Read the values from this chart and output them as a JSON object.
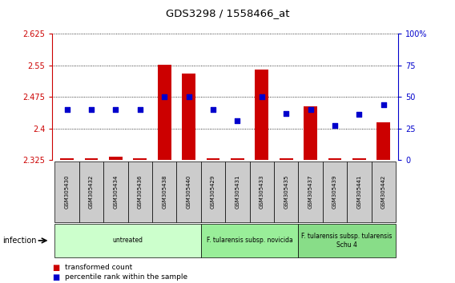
{
  "title": "GDS3298 / 1558466_at",
  "samples": [
    "GSM305430",
    "GSM305432",
    "GSM305434",
    "GSM305436",
    "GSM305438",
    "GSM305440",
    "GSM305429",
    "GSM305431",
    "GSM305433",
    "GSM305435",
    "GSM305437",
    "GSM305439",
    "GSM305441",
    "GSM305442"
  ],
  "transformed_count": [
    2.328,
    2.328,
    2.332,
    2.328,
    2.551,
    2.531,
    2.328,
    2.328,
    2.54,
    2.328,
    2.452,
    2.328,
    2.328,
    2.415
  ],
  "percentile_rank": [
    40,
    40,
    40,
    40,
    50,
    50,
    40,
    31,
    50,
    37,
    40,
    27,
    36,
    44
  ],
  "ylim_left": [
    2.325,
    2.625
  ],
  "ylim_right": [
    0,
    100
  ],
  "yticks_left": [
    2.325,
    2.4,
    2.475,
    2.55,
    2.625
  ],
  "yticks_right": [
    0,
    25,
    50,
    75,
    100
  ],
  "bar_color": "#cc0000",
  "marker_color": "#0000cc",
  "groups": [
    {
      "label": "untreated",
      "start": 0,
      "end": 6,
      "color": "#ccffcc"
    },
    {
      "label": "F. tularensis subsp. novicida",
      "start": 6,
      "end": 10,
      "color": "#99ee99"
    },
    {
      "label": "F. tularensis subsp. tularensis\nSchu 4",
      "start": 10,
      "end": 14,
      "color": "#88dd88"
    }
  ],
  "infection_label": "infection",
  "legend_items": [
    {
      "color": "#cc0000",
      "label": "transformed count"
    },
    {
      "color": "#0000cc",
      "label": "percentile rank within the sample"
    }
  ],
  "bar_bottom": 2.325,
  "figwidth": 5.68,
  "figheight": 3.54,
  "dpi": 100
}
